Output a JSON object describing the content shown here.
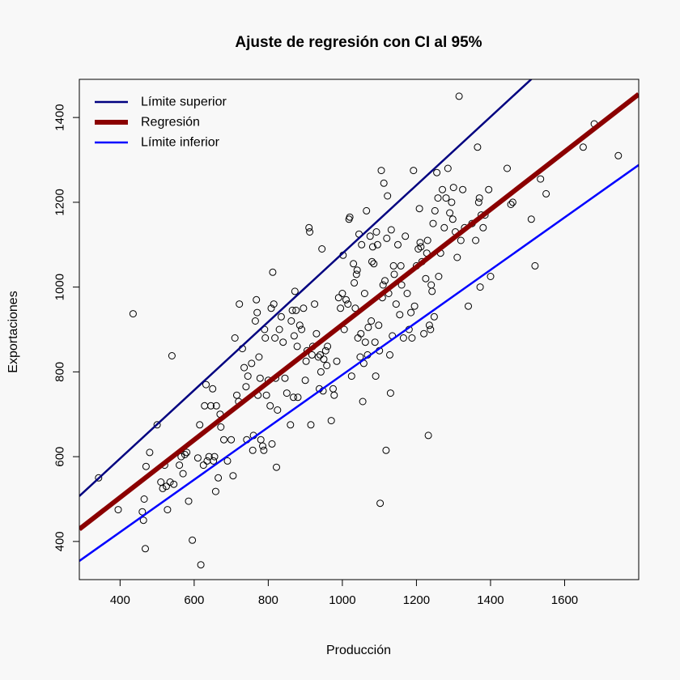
{
  "chart_data": {
    "type": "scatter",
    "title": "Ajuste de regresión con CI al 95%",
    "xlabel": "Producción",
    "ylabel": "Exportaciones",
    "xlim": [
      290,
      1800
    ],
    "ylim": [
      310,
      1490
    ],
    "x_ticks": [
      400,
      600,
      800,
      1000,
      1200,
      1400,
      1600
    ],
    "y_ticks": [
      400,
      600,
      800,
      1000,
      1200,
      1400
    ],
    "grid": false,
    "legend_position": "top-left",
    "lines": [
      {
        "name": "Límite superior",
        "color": "#000080",
        "x1": 290,
        "y1": 507,
        "x2": 1800,
        "y2": 1724
      },
      {
        "name": "Regresión",
        "color": "#8b0000",
        "x1": 290,
        "y1": 429,
        "x2": 1800,
        "y2": 1455
      },
      {
        "name": "Límite inferior",
        "color": "#0000ff",
        "x1": 290,
        "y1": 354,
        "x2": 1800,
        "y2": 1288
      }
    ],
    "points": [
      [
        342,
        550
      ],
      [
        395,
        475
      ],
      [
        435,
        937
      ],
      [
        460,
        470
      ],
      [
        463,
        450
      ],
      [
        465,
        500
      ],
      [
        468,
        383
      ],
      [
        470,
        577
      ],
      [
        480,
        610
      ],
      [
        500,
        675
      ],
      [
        510,
        540
      ],
      [
        515,
        525
      ],
      [
        520,
        580
      ],
      [
        525,
        530
      ],
      [
        528,
        475
      ],
      [
        535,
        540
      ],
      [
        540,
        838
      ],
      [
        545,
        535
      ],
      [
        560,
        580
      ],
      [
        565,
        600
      ],
      [
        570,
        560
      ],
      [
        575,
        605
      ],
      [
        580,
        610
      ],
      [
        585,
        495
      ],
      [
        595,
        403
      ],
      [
        610,
        597
      ],
      [
        615,
        675
      ],
      [
        618,
        345
      ],
      [
        625,
        580
      ],
      [
        628,
        720
      ],
      [
        632,
        770
      ],
      [
        635,
        590
      ],
      [
        640,
        600
      ],
      [
        645,
        720
      ],
      [
        650,
        760
      ],
      [
        652,
        590
      ],
      [
        655,
        600
      ],
      [
        658,
        518
      ],
      [
        660,
        720
      ],
      [
        665,
        550
      ],
      [
        670,
        700
      ],
      [
        672,
        670
      ],
      [
        680,
        640
      ],
      [
        690,
        590
      ],
      [
        700,
        640
      ],
      [
        705,
        555
      ],
      [
        710,
        880
      ],
      [
        715,
        745
      ],
      [
        720,
        730
      ],
      [
        722,
        960
      ],
      [
        730,
        855
      ],
      [
        735,
        810
      ],
      [
        740,
        765
      ],
      [
        742,
        640
      ],
      [
        745,
        790
      ],
      [
        755,
        820
      ],
      [
        758,
        615
      ],
      [
        760,
        650
      ],
      [
        765,
        920
      ],
      [
        768,
        970
      ],
      [
        770,
        940
      ],
      [
        772,
        745
      ],
      [
        775,
        835
      ],
      [
        778,
        785
      ],
      [
        780,
        640
      ],
      [
        785,
        625
      ],
      [
        788,
        615
      ],
      [
        790,
        900
      ],
      [
        792,
        880
      ],
      [
        795,
        745
      ],
      [
        800,
        780
      ],
      [
        805,
        720
      ],
      [
        808,
        950
      ],
      [
        810,
        630
      ],
      [
        812,
        1035
      ],
      [
        815,
        960
      ],
      [
        818,
        880
      ],
      [
        820,
        785
      ],
      [
        822,
        575
      ],
      [
        825,
        710
      ],
      [
        830,
        900
      ],
      [
        835,
        930
      ],
      [
        840,
        870
      ],
      [
        845,
        785
      ],
      [
        850,
        750
      ],
      [
        860,
        675
      ],
      [
        862,
        920
      ],
      [
        865,
        945
      ],
      [
        868,
        740
      ],
      [
        870,
        885
      ],
      [
        872,
        990
      ],
      [
        875,
        945
      ],
      [
        878,
        860
      ],
      [
        880,
        740
      ],
      [
        885,
        910
      ],
      [
        890,
        900
      ],
      [
        895,
        950
      ],
      [
        900,
        780
      ],
      [
        902,
        825
      ],
      [
        905,
        850
      ],
      [
        910,
        1140
      ],
      [
        912,
        1130
      ],
      [
        915,
        675
      ],
      [
        918,
        840
      ],
      [
        920,
        860
      ],
      [
        925,
        960
      ],
      [
        930,
        890
      ],
      [
        935,
        835
      ],
      [
        938,
        760
      ],
      [
        940,
        840
      ],
      [
        942,
        800
      ],
      [
        945,
        1090
      ],
      [
        948,
        755
      ],
      [
        950,
        830
      ],
      [
        955,
        850
      ],
      [
        958,
        815
      ],
      [
        960,
        860
      ],
      [
        970,
        685
      ],
      [
        975,
        760
      ],
      [
        978,
        745
      ],
      [
        985,
        825
      ],
      [
        990,
        975
      ],
      [
        995,
        950
      ],
      [
        1000,
        985
      ],
      [
        1002,
        1075
      ],
      [
        1005,
        900
      ],
      [
        1010,
        970
      ],
      [
        1015,
        960
      ],
      [
        1018,
        1160
      ],
      [
        1020,
        1165
      ],
      [
        1025,
        790
      ],
      [
        1030,
        1055
      ],
      [
        1032,
        1010
      ],
      [
        1035,
        950
      ],
      [
        1038,
        1030
      ],
      [
        1040,
        1040
      ],
      [
        1042,
        880
      ],
      [
        1045,
        1125
      ],
      [
        1048,
        835
      ],
      [
        1050,
        890
      ],
      [
        1052,
        1100
      ],
      [
        1055,
        730
      ],
      [
        1058,
        820
      ],
      [
        1060,
        985
      ],
      [
        1062,
        870
      ],
      [
        1065,
        1180
      ],
      [
        1068,
        840
      ],
      [
        1070,
        905
      ],
      [
        1075,
        1120
      ],
      [
        1078,
        920
      ],
      [
        1080,
        1060
      ],
      [
        1082,
        1095
      ],
      [
        1085,
        1055
      ],
      [
        1088,
        870
      ],
      [
        1090,
        790
      ],
      [
        1092,
        1130
      ],
      [
        1095,
        1100
      ],
      [
        1098,
        910
      ],
      [
        1100,
        850
      ],
      [
        1102,
        490
      ],
      [
        1105,
        1275
      ],
      [
        1108,
        975
      ],
      [
        1110,
        1005
      ],
      [
        1112,
        1245
      ],
      [
        1115,
        1015
      ],
      [
        1118,
        615
      ],
      [
        1120,
        1115
      ],
      [
        1122,
        1215
      ],
      [
        1125,
        985
      ],
      [
        1128,
        840
      ],
      [
        1130,
        750
      ],
      [
        1132,
        1135
      ],
      [
        1135,
        885
      ],
      [
        1138,
        1050
      ],
      [
        1140,
        1030
      ],
      [
        1145,
        960
      ],
      [
        1150,
        1100
      ],
      [
        1155,
        935
      ],
      [
        1158,
        1050
      ],
      [
        1160,
        1005
      ],
      [
        1165,
        880
      ],
      [
        1170,
        1120
      ],
      [
        1175,
        985
      ],
      [
        1180,
        900
      ],
      [
        1185,
        940
      ],
      [
        1188,
        880
      ],
      [
        1192,
        1275
      ],
      [
        1195,
        955
      ],
      [
        1200,
        1050
      ],
      [
        1205,
        1090
      ],
      [
        1208,
        1185
      ],
      [
        1210,
        1105
      ],
      [
        1212,
        1095
      ],
      [
        1215,
        1060
      ],
      [
        1220,
        890
      ],
      [
        1225,
        1020
      ],
      [
        1228,
        1080
      ],
      [
        1230,
        1110
      ],
      [
        1232,
        650
      ],
      [
        1235,
        910
      ],
      [
        1238,
        900
      ],
      [
        1240,
        1005
      ],
      [
        1242,
        990
      ],
      [
        1245,
        1150
      ],
      [
        1248,
        930
      ],
      [
        1250,
        1180
      ],
      [
        1255,
        1270
      ],
      [
        1258,
        1210
      ],
      [
        1260,
        1025
      ],
      [
        1265,
        1080
      ],
      [
        1270,
        1230
      ],
      [
        1275,
        1140
      ],
      [
        1280,
        1210
      ],
      [
        1285,
        1280
      ],
      [
        1290,
        1175
      ],
      [
        1295,
        1200
      ],
      [
        1298,
        1160
      ],
      [
        1300,
        1235
      ],
      [
        1305,
        1130
      ],
      [
        1310,
        1070
      ],
      [
        1315,
        1450
      ],
      [
        1320,
        1110
      ],
      [
        1325,
        1230
      ],
      [
        1330,
        1140
      ],
      [
        1340,
        955
      ],
      [
        1350,
        1150
      ],
      [
        1360,
        1110
      ],
      [
        1365,
        1330
      ],
      [
        1368,
        1200
      ],
      [
        1370,
        1210
      ],
      [
        1372,
        1000
      ],
      [
        1375,
        1170
      ],
      [
        1380,
        1140
      ],
      [
        1385,
        1170
      ],
      [
        1395,
        1230
      ],
      [
        1400,
        1025
      ],
      [
        1445,
        1280
      ],
      [
        1455,
        1195
      ],
      [
        1460,
        1200
      ],
      [
        1510,
        1160
      ],
      [
        1520,
        1050
      ],
      [
        1535,
        1255
      ],
      [
        1550,
        1220
      ],
      [
        1650,
        1330
      ],
      [
        1680,
        1385
      ],
      [
        1745,
        1310
      ]
    ]
  }
}
